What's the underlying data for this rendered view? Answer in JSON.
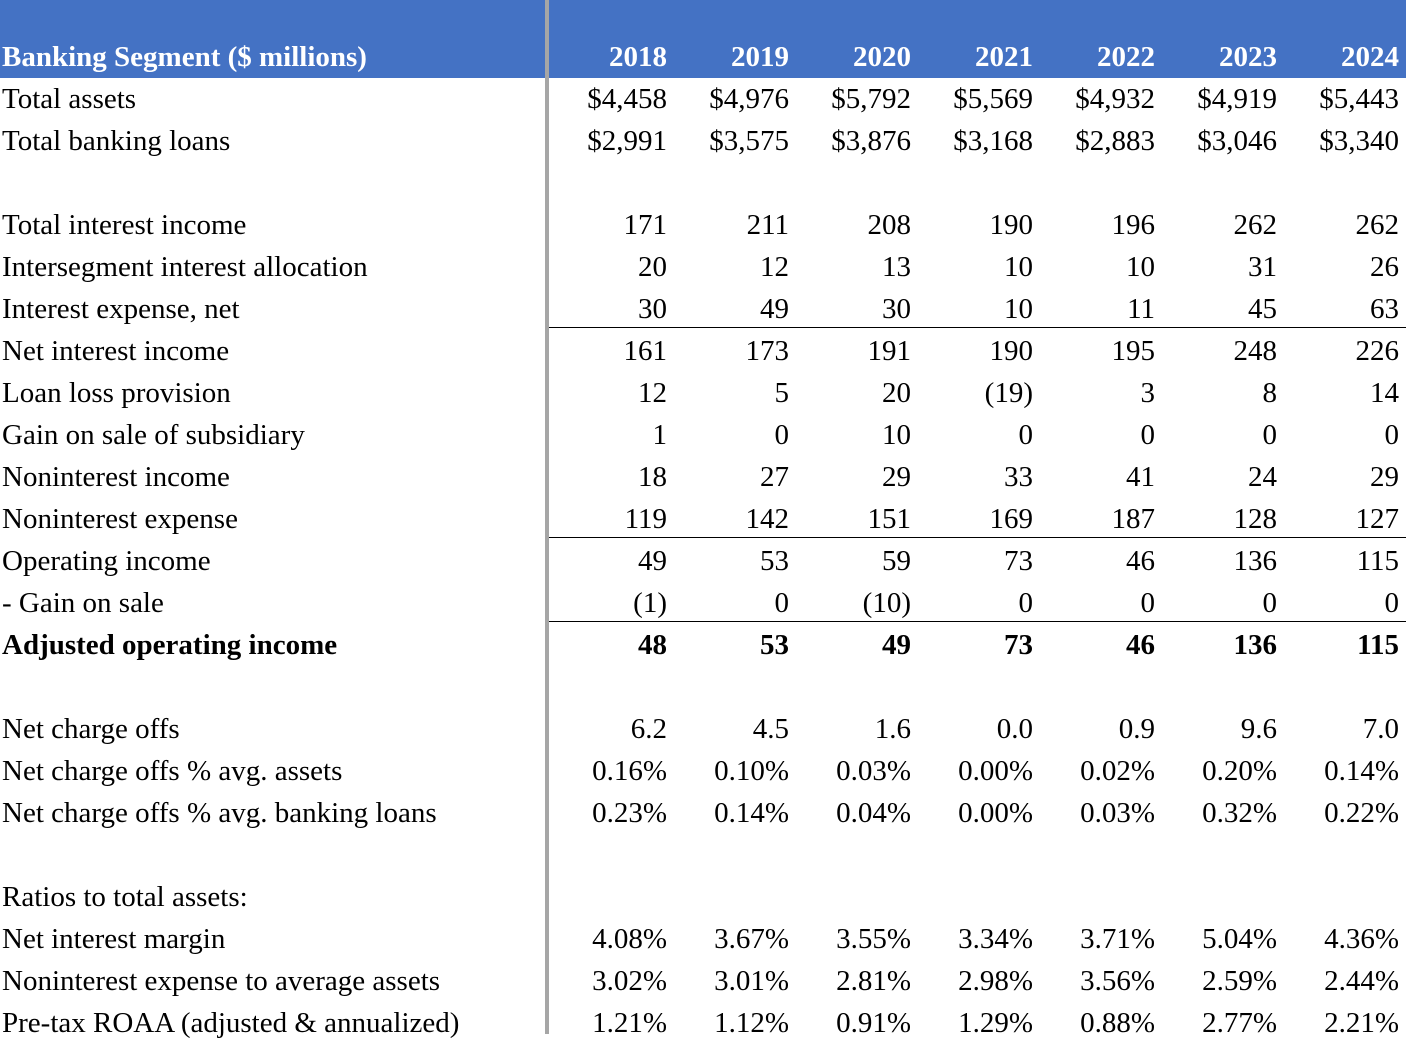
{
  "table": {
    "header": {
      "label": "Banking Segment ($ millions)",
      "years": [
        "2018",
        "2019",
        "2020",
        "2021",
        "2022",
        "2023",
        "2024"
      ]
    },
    "rows": [
      {
        "label": "Total assets",
        "values": [
          "$4,458",
          "$4,976",
          "$5,792",
          "$5,569",
          "$4,932",
          "$4,919",
          "$5,443"
        ]
      },
      {
        "label": "Total banking loans",
        "values": [
          "$2,991",
          "$3,575",
          "$3,876",
          "$3,168",
          "$2,883",
          "$3,046",
          "$3,340"
        ]
      },
      {
        "label": "Total interest income",
        "values": [
          "171",
          "211",
          "208",
          "190",
          "196",
          "262",
          "262"
        ]
      },
      {
        "label": "Intersegment interest allocation",
        "values": [
          "20",
          "12",
          "13",
          "10",
          "10",
          "31",
          "26"
        ]
      },
      {
        "label": "Interest expense, net",
        "values": [
          "30",
          "49",
          "30",
          "10",
          "11",
          "45",
          "63"
        ]
      },
      {
        "label": "Net interest income",
        "values": [
          "161",
          "173",
          "191",
          "190",
          "195",
          "248",
          "226"
        ]
      },
      {
        "label": "Loan loss provision",
        "values": [
          "12",
          "5",
          "20",
          "(19)",
          "3",
          "8",
          "14"
        ]
      },
      {
        "label": "Gain on sale of subsidiary",
        "values": [
          "1",
          "0",
          "10",
          "0",
          "0",
          "0",
          "0"
        ]
      },
      {
        "label": "Noninterest income",
        "values": [
          "18",
          "27",
          "29",
          "33",
          "41",
          "24",
          "29"
        ]
      },
      {
        "label": "Noninterest expense",
        "values": [
          "119",
          "142",
          "151",
          "169",
          "187",
          "128",
          "127"
        ]
      },
      {
        "label": "Operating income",
        "values": [
          "49",
          "53",
          "59",
          "73",
          "46",
          "136",
          "115"
        ]
      },
      {
        "label": " - Gain on sale",
        "values": [
          "(1)",
          "0",
          "(10)",
          "0",
          "0",
          "0",
          "0"
        ]
      },
      {
        "label": "Adjusted operating income",
        "values": [
          "48",
          "53",
          "49",
          "73",
          "46",
          "136",
          "115"
        ]
      },
      {
        "label": "Net charge offs",
        "values": [
          "6.2",
          "4.5",
          "1.6",
          "0.0",
          "0.9",
          "9.6",
          "7.0"
        ]
      },
      {
        "label": "Net charge offs % avg. assets",
        "values": [
          "0.16%",
          "0.10%",
          "0.03%",
          "0.00%",
          "0.02%",
          "0.20%",
          "0.14%"
        ]
      },
      {
        "label": "Net charge offs % avg. banking loans",
        "values": [
          "0.23%",
          "0.14%",
          "0.04%",
          "0.00%",
          "0.03%",
          "0.32%",
          "0.22%"
        ]
      },
      {
        "label": "Ratios to total assets:",
        "values": []
      },
      {
        "label": "Net interest margin",
        "values": [
          "4.08%",
          "3.67%",
          "3.55%",
          "3.34%",
          "3.71%",
          "5.04%",
          "4.36%"
        ]
      },
      {
        "label": "Noninterest expense to average assets",
        "values": [
          "3.02%",
          "3.01%",
          "2.81%",
          "2.98%",
          "3.56%",
          "2.59%",
          "2.44%"
        ]
      },
      {
        "label": "Pre-tax ROAA (adjusted & annualized)",
        "values": [
          "1.21%",
          "1.12%",
          "0.91%",
          "1.29%",
          "0.88%",
          "2.77%",
          "2.21%"
        ]
      }
    ]
  }
}
